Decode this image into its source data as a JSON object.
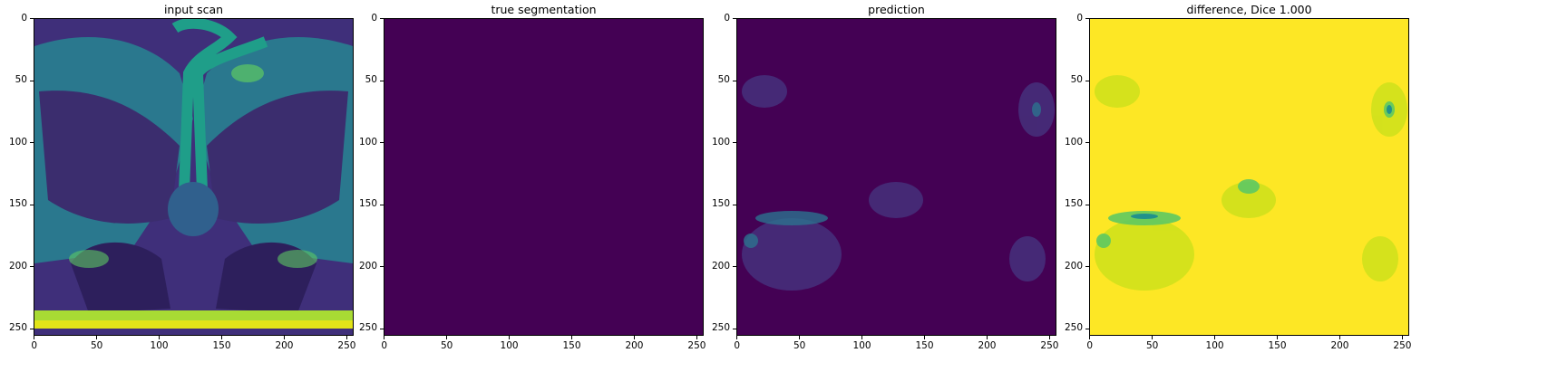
{
  "panels": [
    {
      "title": "input scan",
      "kind": "scan"
    },
    {
      "title": "true segmentation",
      "kind": "empty"
    },
    {
      "title": "prediction",
      "kind": "prediction"
    },
    {
      "title": "difference, Dice 1.000",
      "kind": "difference"
    }
  ],
  "axes": {
    "x_ticks": [
      "0",
      "50",
      "100",
      "150",
      "200",
      "250"
    ],
    "y_ticks": [
      "0",
      "50",
      "100",
      "150",
      "200",
      "250"
    ],
    "range": [
      0,
      255
    ]
  },
  "colors": {
    "viridis_low": "#440154",
    "viridis_mid_dark": "#3b528b",
    "viridis_mid": "#21918c",
    "viridis_mid_light": "#5ec962",
    "viridis_high": "#fde725"
  }
}
